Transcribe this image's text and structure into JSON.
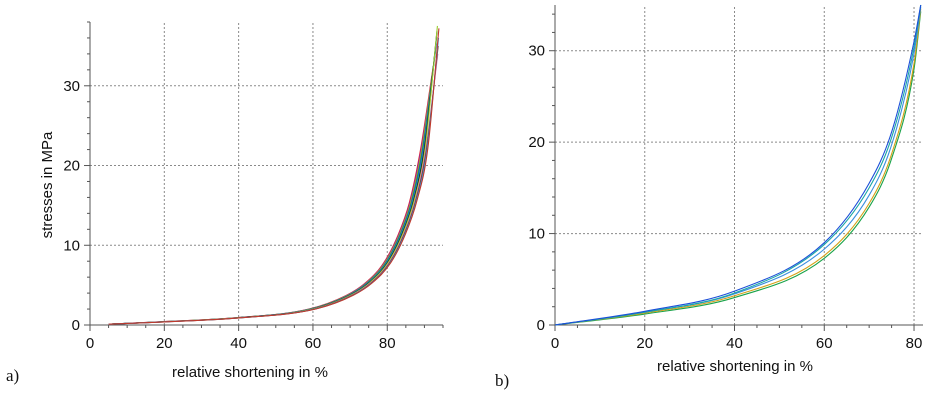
{
  "chart_data": [
    {
      "panel_label": "a)",
      "type": "line",
      "xlabel": "relative shortening in %",
      "ylabel": "stresses in MPa",
      "xlim": [
        0,
        95
      ],
      "ylim": [
        0,
        38
      ],
      "x_ticks": [
        0,
        20,
        40,
        60,
        80
      ],
      "y_ticks": [
        0,
        10,
        20,
        30
      ],
      "grid": true,
      "legend": "none",
      "series_colors": [
        "#e8202a",
        "#7b2fbe",
        "#d4a017",
        "#1aa34a",
        "#1c4fd8",
        "#18a6a6",
        "#111111",
        "#9acd32",
        "#e87ac0",
        "#6a3d1a",
        "#3b8ede",
        "#c0392b"
      ],
      "series_x_end": [
        92.3,
        92.6,
        92.8,
        93.0,
        93.2,
        93.3,
        93.4,
        93.5,
        93.6,
        93.7,
        93.8,
        93.9
      ],
      "series_y_max": [
        32.2,
        33.0,
        33.8,
        34.5,
        35.3,
        36.1,
        36.9,
        37.5,
        34.0,
        35.0,
        36.0,
        37.2
      ],
      "series": [
        {
          "values_x": [
            5,
            20,
            40,
            60,
            70,
            75,
            80,
            84,
            87,
            90,
            92.3
          ],
          "values_y": [
            0.1,
            0.4,
            0.9,
            2.0,
            3.7,
            5.2,
            7.7,
            11.3,
            15.3,
            21.9,
            32.2
          ]
        }
      ]
    },
    {
      "panel_label": "b)",
      "type": "line",
      "xlabel": "relative shortening in %",
      "ylabel": "",
      "xlim": [
        0,
        82
      ],
      "ylim": [
        0,
        35
      ],
      "x_ticks": [
        0,
        20,
        40,
        60,
        80
      ],
      "y_ticks": [
        0,
        10,
        20,
        30
      ],
      "grid": true,
      "legend": "none",
      "series_colors": [
        "#1aa34a",
        "#d4a017",
        "#3b8ede",
        "#18a6a6",
        "#1c4fd8"
      ],
      "series": [
        {
          "values_x": [
            0,
            20,
            40,
            60,
            70,
            75,
            80,
            81.5
          ],
          "values_y": [
            0,
            1.2,
            3.0,
            7.3,
            12.9,
            18.2,
            28.0,
            34.3
          ]
        },
        {
          "values_x": [
            0,
            20,
            40,
            60,
            70,
            75,
            80,
            81.5
          ],
          "values_y": [
            0,
            1.3,
            3.2,
            7.6,
            13.3,
            18.7,
            28.6,
            34.6
          ]
        },
        {
          "values_x": [
            0,
            20,
            40,
            60,
            70,
            75,
            80,
            81.5
          ],
          "values_y": [
            0,
            1.4,
            3.4,
            8.3,
            14.2,
            19.7,
            29.7,
            34.8
          ]
        },
        {
          "values_x": [
            0,
            20,
            40,
            60,
            70,
            75,
            80,
            81.5
          ],
          "values_y": [
            0,
            1.4,
            3.5,
            8.8,
            15.0,
            20.5,
            30.4,
            35.0
          ]
        },
        {
          "values_x": [
            0,
            20,
            40,
            60,
            70,
            75,
            80,
            81.5
          ],
          "values_y": [
            0,
            1.5,
            3.7,
            9.0,
            15.5,
            21.1,
            31.0,
            35.0
          ]
        }
      ]
    }
  ]
}
